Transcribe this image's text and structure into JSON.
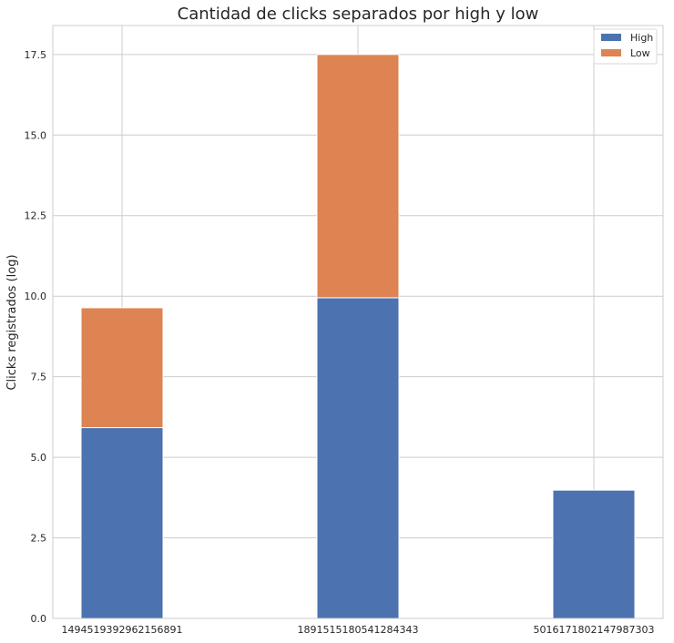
{
  "chart_data": {
    "type": "bar",
    "stacked": true,
    "title": "Cantidad de clicks separados por high y low",
    "xlabel": "",
    "ylabel": "Clicks registrados (log)",
    "ylim": [
      0,
      18.4
    ],
    "yticks": [
      "0.0",
      "2.5",
      "5.0",
      "7.5",
      "10.0",
      "12.5",
      "15.0",
      "17.5"
    ],
    "grid": true,
    "legend_position": "top-right",
    "categories": [
      "1494519392962156891",
      "1891515180541284343",
      "5016171802147987303"
    ],
    "series": [
      {
        "name": "High",
        "color": "#4c72b0",
        "values": [
          5.92,
          9.95,
          3.98
        ]
      },
      {
        "name": "Low",
        "color": "#dd8452",
        "values": [
          3.72,
          7.55,
          0
        ]
      }
    ]
  }
}
